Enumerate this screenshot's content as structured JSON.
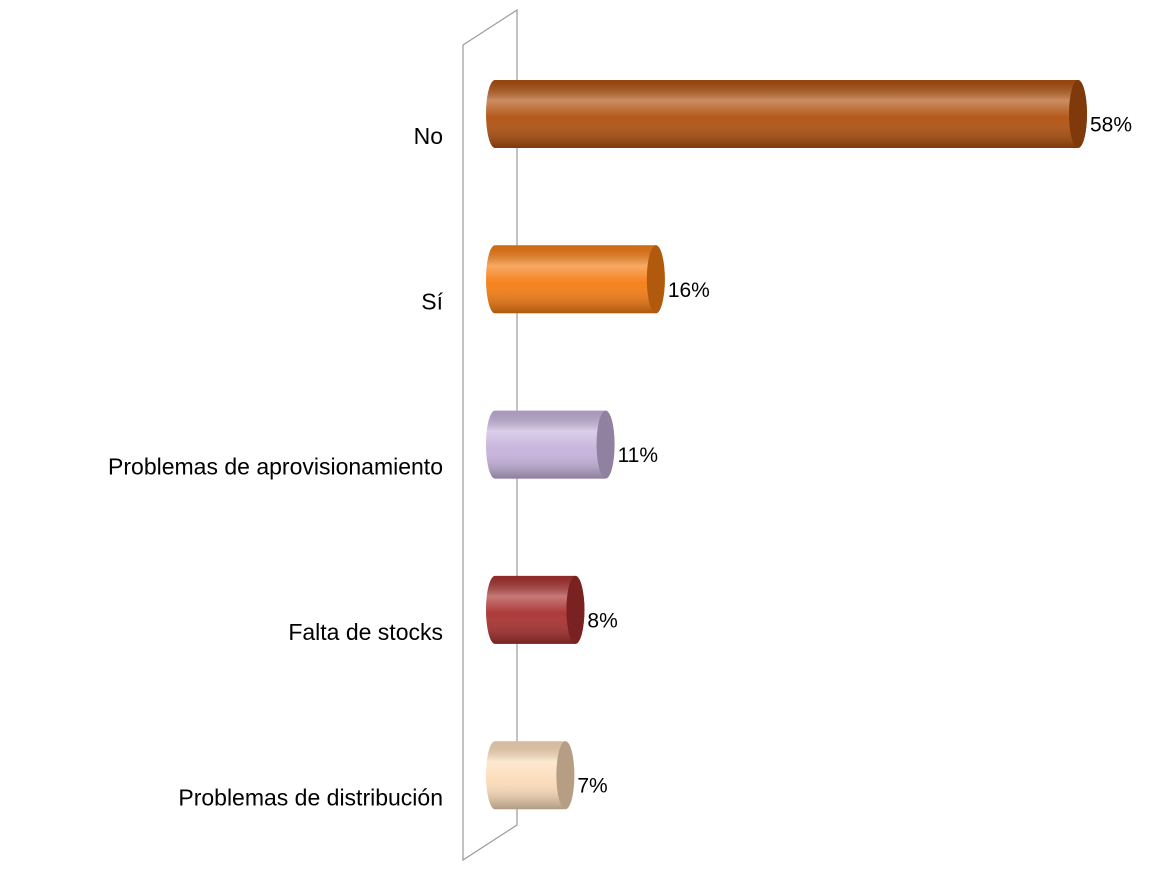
{
  "chart_data": {
    "type": "bar",
    "orientation": "horizontal",
    "categories": [
      "No",
      "Sí",
      "Problemas de aprovisionamiento",
      "Falta de stocks",
      "Problemas de distribución"
    ],
    "values": [
      58,
      16,
      11,
      8,
      7
    ],
    "value_labels": [
      "58%",
      "16%",
      "11%",
      "8%",
      "7%"
    ],
    "colors": [
      "#b0500e",
      "#f57c12",
      "#c7b3dd",
      "#a8302f",
      "#fcdcb9"
    ]
  }
}
